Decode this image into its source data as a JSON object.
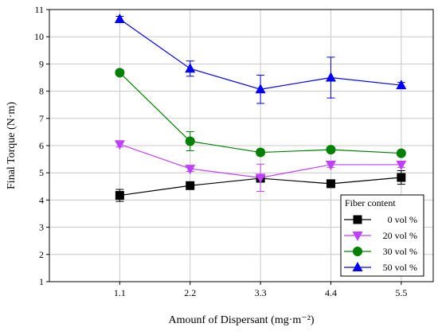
{
  "chart_data": {
    "type": "line",
    "title": "",
    "xlabel": "Amounf of Dispersant (mg·m⁻²)",
    "ylabel": "Final Torque (N·m)",
    "x": [
      1.1,
      2.2,
      3.3,
      4.4,
      5.5
    ],
    "x_tick_labels": [
      "1.1",
      "2.2",
      "3.3",
      "4.4",
      "5.5"
    ],
    "xlim": [
      0.0,
      6.0
    ],
    "ylim": [
      1,
      11
    ],
    "y_ticks": [
      1,
      2,
      3,
      4,
      5,
      6,
      7,
      8,
      9,
      10,
      11
    ],
    "y_tick_labels": [
      "1",
      "2",
      "3",
      "4",
      "5",
      "6",
      "7",
      "8",
      "9",
      "10",
      "11"
    ],
    "grid": true,
    "legend": {
      "title": "Fiber content",
      "placement": "bottom-right"
    },
    "series": [
      {
        "name": "0 vol %",
        "color": "#000000",
        "marker": "square",
        "values": [
          4.17,
          4.53,
          4.8,
          4.6,
          4.83
        ],
        "errors": [
          0.22,
          0.1,
          0.1,
          0.1,
          0.25
        ]
      },
      {
        "name": "20 vol %",
        "color": "#c040ff",
        "marker": "triangle-down",
        "values": [
          6.05,
          5.15,
          4.82,
          5.3,
          5.3
        ],
        "errors": [
          0.1,
          0.1,
          0.5,
          0.1,
          0.1
        ]
      },
      {
        "name": "30 vol %",
        "color": "#008000",
        "marker": "circle",
        "values": [
          8.68,
          6.16,
          5.75,
          5.85,
          5.72
        ],
        "errors": [
          0.1,
          0.35,
          0.1,
          0.1,
          0.1
        ]
      },
      {
        "name": "50 vol %",
        "color": "#0000ff",
        "marker": "triangle-up",
        "values": [
          10.65,
          8.83,
          8.07,
          8.5,
          8.22
        ],
        "errors": [
          0.1,
          0.28,
          0.52,
          0.75,
          0.1
        ]
      }
    ]
  }
}
